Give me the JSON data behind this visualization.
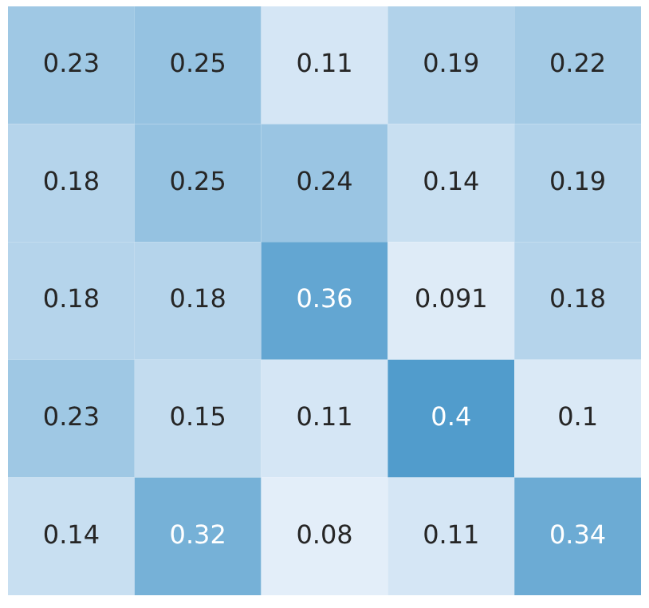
{
  "chart_data": {
    "type": "heatmap",
    "categories": [
      null,
      null,
      null,
      null,
      null
    ],
    "y_categories": [
      null,
      null,
      null,
      null,
      null
    ],
    "cells": [
      [
        0.23,
        0.25,
        0.11,
        0.19,
        0.22
      ],
      [
        0.18,
        0.25,
        0.24,
        0.14,
        0.19
      ],
      [
        0.18,
        0.18,
        0.36,
        0.091,
        0.18
      ],
      [
        0.23,
        0.15,
        0.11,
        0.4,
        0.1
      ],
      [
        0.14,
        0.32,
        0.08,
        0.11,
        0.34
      ]
    ],
    "data_labels": true
  }
}
